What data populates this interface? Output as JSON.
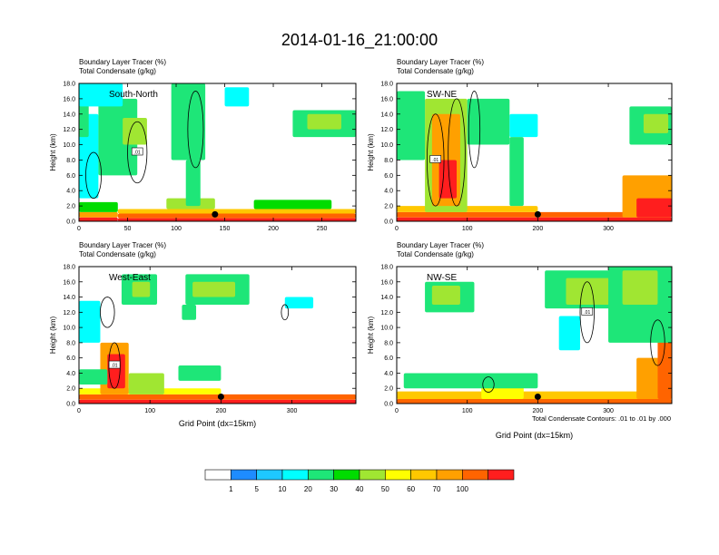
{
  "title": "2014-01-16_21:00:00",
  "y_axis_label": "Height (km)",
  "x_axis_label": "Grid Point (dx=15km)",
  "footnote": "Total Condensate Contours: .01 to .01 by .000",
  "panel_subtitle_1": "Boundary Layer Tracer    (%)",
  "panel_subtitle_2": "Total Condensate    (g/kg)",
  "contour_label": ".01",
  "colors": {
    "levels": [
      "#ffffff",
      "#1e8cff",
      "#1ec8ff",
      "#00ffff",
      "#1ee678",
      "#00dc00",
      "#a0e632",
      "#ffff00",
      "#ffc800",
      "#ffa000",
      "#ff6400",
      "#ff1e1e"
    ],
    "contour": "#000000",
    "marker": "#000000"
  },
  "chart_data": [
    {
      "type": "heatmap",
      "section": "South-North",
      "xlim": [
        0,
        285
      ],
      "ylim": [
        0,
        18
      ],
      "xticks": [
        0,
        50,
        100,
        150,
        200,
        250
      ],
      "yticks": [
        "0.0",
        "2.0",
        "4.0",
        "6.0",
        "8.0",
        "10.0",
        "12.0",
        "14.0",
        "16.0",
        "18.0"
      ],
      "marker_x": 140,
      "cells": [
        [
          0,
          40,
          0,
          0.5,
          11
        ],
        [
          0,
          40,
          0.5,
          1.2,
          9
        ],
        [
          0,
          40,
          1.2,
          2.5,
          5
        ],
        [
          40,
          285,
          0,
          0.4,
          11
        ],
        [
          40,
          285,
          0.4,
          1.0,
          10
        ],
        [
          40,
          285,
          1.0,
          1.6,
          8
        ],
        [
          90,
          140,
          1.6,
          3.0,
          6
        ],
        [
          180,
          260,
          1.6,
          2.8,
          5
        ],
        [
          0,
          20,
          3.0,
          14.0,
          3
        ],
        [
          20,
          60,
          6.0,
          16.0,
          4
        ],
        [
          45,
          70,
          10.0,
          13.5,
          6
        ],
        [
          0,
          10,
          11.0,
          16.5,
          4
        ],
        [
          0,
          45,
          15.0,
          18.0,
          3
        ],
        [
          95,
          130,
          8.0,
          18.0,
          4
        ],
        [
          110,
          125,
          2.0,
          8.0,
          4
        ],
        [
          150,
          175,
          15.0,
          17.5,
          3
        ],
        [
          220,
          285,
          11.0,
          14.5,
          4
        ],
        [
          235,
          270,
          12.0,
          14.0,
          6
        ]
      ],
      "contours": [
        [
          60,
          9,
          10,
          4
        ],
        [
          120,
          12,
          8,
          5
        ],
        [
          15,
          6,
          8,
          3
        ]
      ]
    },
    {
      "type": "heatmap",
      "section": "SW-NE",
      "xlim": [
        0,
        390
      ],
      "ylim": [
        0,
        18
      ],
      "xticks": [
        0,
        100,
        200,
        300
      ],
      "yticks": [
        "0.0",
        "2.0",
        "4.0",
        "6.0",
        "8.0",
        "10.0",
        "12.0",
        "14.0",
        "16.0",
        "18.0"
      ],
      "marker_x": 200,
      "cells": [
        [
          0,
          390,
          0,
          0.5,
          11
        ],
        [
          0,
          390,
          0.5,
          1.2,
          10
        ],
        [
          0,
          200,
          1.2,
          2.0,
          8
        ],
        [
          320,
          390,
          0.5,
          6.0,
          9
        ],
        [
          340,
          390,
          0.5,
          3.0,
          11
        ],
        [
          40,
          100,
          1.2,
          16.0,
          6
        ],
        [
          50,
          90,
          2.0,
          14.0,
          9
        ],
        [
          60,
          85,
          3.0,
          8.0,
          11
        ],
        [
          0,
          40,
          8.0,
          17.0,
          4
        ],
        [
          100,
          160,
          10.0,
          16.0,
          4
        ],
        [
          160,
          200,
          11.0,
          14.0,
          3
        ],
        [
          330,
          390,
          10.0,
          15.0,
          4
        ],
        [
          350,
          385,
          11.5,
          14.0,
          6
        ],
        [
          160,
          180,
          2.0,
          11.0,
          4
        ]
      ],
      "contours": [
        [
          55,
          8,
          12,
          6
        ],
        [
          85,
          9,
          12,
          7
        ],
        [
          110,
          12,
          8,
          5
        ]
      ]
    },
    {
      "type": "heatmap",
      "section": "West-East",
      "xlim": [
        0,
        390
      ],
      "ylim": [
        0,
        18
      ],
      "xticks": [
        0,
        100,
        200,
        300
      ],
      "yticks": [
        "0.0",
        "2.0",
        "4.0",
        "6.0",
        "8.0",
        "10.0",
        "12.0",
        "14.0",
        "16.0",
        "18.0"
      ],
      "marker_x": 200,
      "cells": [
        [
          0,
          390,
          0,
          0.5,
          11
        ],
        [
          0,
          390,
          0.5,
          1.2,
          10
        ],
        [
          0,
          200,
          1.2,
          2.0,
          7
        ],
        [
          30,
          70,
          1.2,
          8.0,
          9
        ],
        [
          40,
          65,
          2.0,
          6.5,
          11
        ],
        [
          70,
          120,
          1.2,
          4.0,
          6
        ],
        [
          0,
          40,
          2.5,
          4.5,
          4
        ],
        [
          60,
          110,
          13.0,
          17.0,
          4
        ],
        [
          75,
          100,
          14.0,
          16.0,
          6
        ],
        [
          150,
          240,
          13.0,
          17.0,
          4
        ],
        [
          160,
          220,
          14.0,
          16.0,
          6
        ],
        [
          290,
          330,
          12.5,
          14.0,
          3
        ],
        [
          145,
          165,
          11.0,
          13.0,
          4
        ],
        [
          0,
          30,
          8.0,
          13.5,
          3
        ],
        [
          140,
          200,
          3.0,
          5.0,
          4
        ]
      ],
      "contours": [
        [
          50,
          5,
          8,
          3
        ],
        [
          40,
          12,
          10,
          2
        ],
        [
          290,
          12,
          5,
          1
        ]
      ]
    },
    {
      "type": "heatmap",
      "section": "NW-SE",
      "xlim": [
        0,
        390
      ],
      "ylim": [
        0,
        18
      ],
      "xticks": [
        0,
        100,
        200,
        300
      ],
      "yticks": [
        "0.0",
        "2.0",
        "4.0",
        "6.0",
        "8.0",
        "10.0",
        "12.0",
        "14.0",
        "16.0",
        "18.0"
      ],
      "marker_x": 200,
      "cells": [
        [
          0,
          390,
          0,
          0.6,
          10
        ],
        [
          0,
          390,
          0.6,
          1.6,
          8
        ],
        [
          120,
          180,
          0.6,
          3.5,
          7
        ],
        [
          10,
          200,
          2.0,
          4.0,
          4
        ],
        [
          340,
          390,
          0.6,
          6.0,
          9
        ],
        [
          370,
          390,
          0.6,
          18.0,
          10
        ],
        [
          40,
          110,
          12.0,
          16.0,
          4
        ],
        [
          50,
          90,
          13.0,
          15.5,
          6
        ],
        [
          210,
          330,
          12.5,
          17.5,
          4
        ],
        [
          240,
          320,
          13.0,
          16.5,
          6
        ],
        [
          300,
          390,
          8.0,
          18.0,
          4
        ],
        [
          320,
          370,
          13.0,
          17.5,
          6
        ],
        [
          230,
          260,
          7.0,
          11.5,
          3
        ]
      ],
      "contours": [
        [
          270,
          12,
          10,
          4
        ],
        [
          370,
          8,
          10,
          3
        ],
        [
          130,
          2.5,
          8,
          1
        ]
      ]
    }
  ],
  "legend": {
    "labels": [
      "1",
      "5",
      "10",
      "20",
      "30",
      "40",
      "50",
      "60",
      "70",
      "100"
    ]
  }
}
